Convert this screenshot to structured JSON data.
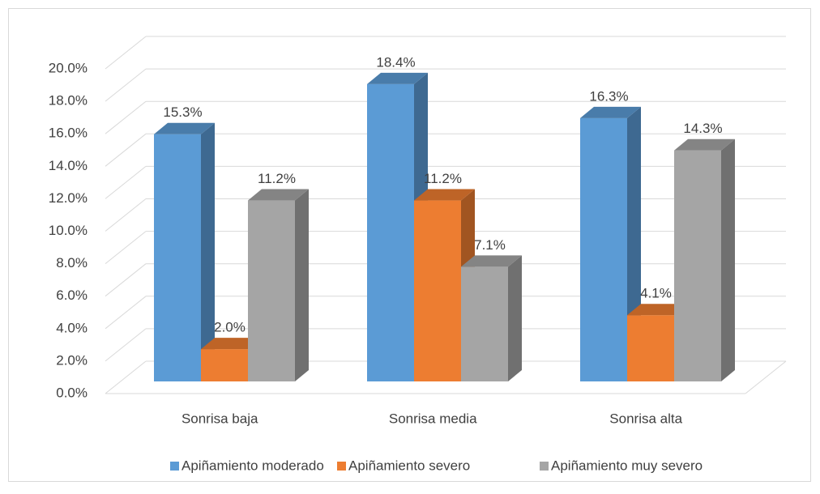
{
  "chart_data": {
    "type": "bar3d",
    "categories": [
      "Sonrisa baja",
      "Sonrisa media",
      "Sonrisa alta"
    ],
    "series": [
      {
        "name": "Apiñamiento moderado",
        "color": "#5b9bd5",
        "values": [
          15.3,
          18.4,
          16.3
        ],
        "value_labels": [
          "15.3%",
          "18.4%",
          "16.3%"
        ]
      },
      {
        "name": "Apiñamiento severo",
        "color": "#ed7d31",
        "values": [
          2.0,
          11.2,
          4.1
        ],
        "value_labels": [
          "2.0%",
          "11.2%",
          "4.1%"
        ]
      },
      {
        "name": "Apiñamiento muy severo",
        "color": "#a5a5a5",
        "values": [
          11.2,
          7.1,
          14.3
        ],
        "value_labels": [
          "11.2%",
          "7.1%",
          "14.3%"
        ]
      }
    ],
    "ylim": [
      0,
      20
    ],
    "yticks": [
      {
        "value": 0,
        "label": "0.0%"
      },
      {
        "value": 2,
        "label": "2.0%"
      },
      {
        "value": 4,
        "label": "4.0%"
      },
      {
        "value": 6,
        "label": "6.0%"
      },
      {
        "value": 8,
        "label": "8.0%"
      },
      {
        "value": 10,
        "label": "10.0%"
      },
      {
        "value": 12,
        "label": "12.0%"
      },
      {
        "value": 14,
        "label": "14.0%"
      },
      {
        "value": 16,
        "label": "16.0%"
      },
      {
        "value": 18,
        "label": "18.0%"
      },
      {
        "value": 20,
        "label": "20.0%"
      }
    ],
    "grid": true,
    "legend": "bottom"
  }
}
